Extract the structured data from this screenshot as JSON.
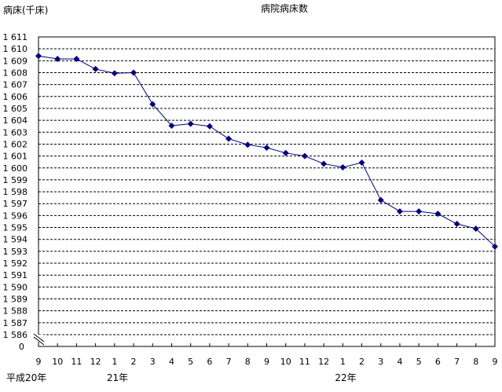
{
  "chart_data": {
    "type": "line",
    "title": "病院病床数",
    "ylabel": "病床(千床)",
    "xlabel": "",
    "categories": [
      "9",
      "10",
      "11",
      "12",
      "1",
      "2",
      "3",
      "4",
      "5",
      "6",
      "7",
      "8",
      "9",
      "10",
      "11",
      "12",
      "1",
      "2",
      "3",
      "4",
      "5",
      "6",
      "7",
      "8",
      "9"
    ],
    "year_labels": [
      {
        "label": "平成20年",
        "at_index": 0
      },
      {
        "label": "21年",
        "at_index": 4
      },
      {
        "label": "22年",
        "at_index": 16
      }
    ],
    "series": [
      {
        "values": [
          1609.4,
          1609.15,
          1609.15,
          1608.3,
          1607.95,
          1608.0,
          1605.35,
          1603.55,
          1603.7,
          1603.5,
          1602.45,
          1601.95,
          1601.7,
          1601.25,
          1601.0,
          1600.35,
          1600.05,
          1600.45,
          1597.3,
          1596.35,
          1596.35,
          1596.15,
          1595.3,
          1594.9,
          1593.4
        ],
        "color": "#00007f"
      }
    ],
    "ylim": [
      1586,
      1611
    ],
    "axis_break": true,
    "y_tick_labels": [
      "1 611",
      "1 610",
      "1 609",
      "1 608",
      "1 607",
      "1 606",
      "1 605",
      "1 604",
      "1 603",
      "1 602",
      "1 601",
      "1 600",
      "1 599",
      "1 598",
      "1 597",
      "1 596",
      "1 595",
      "1 594",
      "1 593",
      "1 592",
      "1 591",
      "1 590",
      "1 589",
      "1 588",
      "1 587",
      "1 586",
      "0"
    ],
    "grid": "horizontal dashed",
    "legend": "none"
  }
}
